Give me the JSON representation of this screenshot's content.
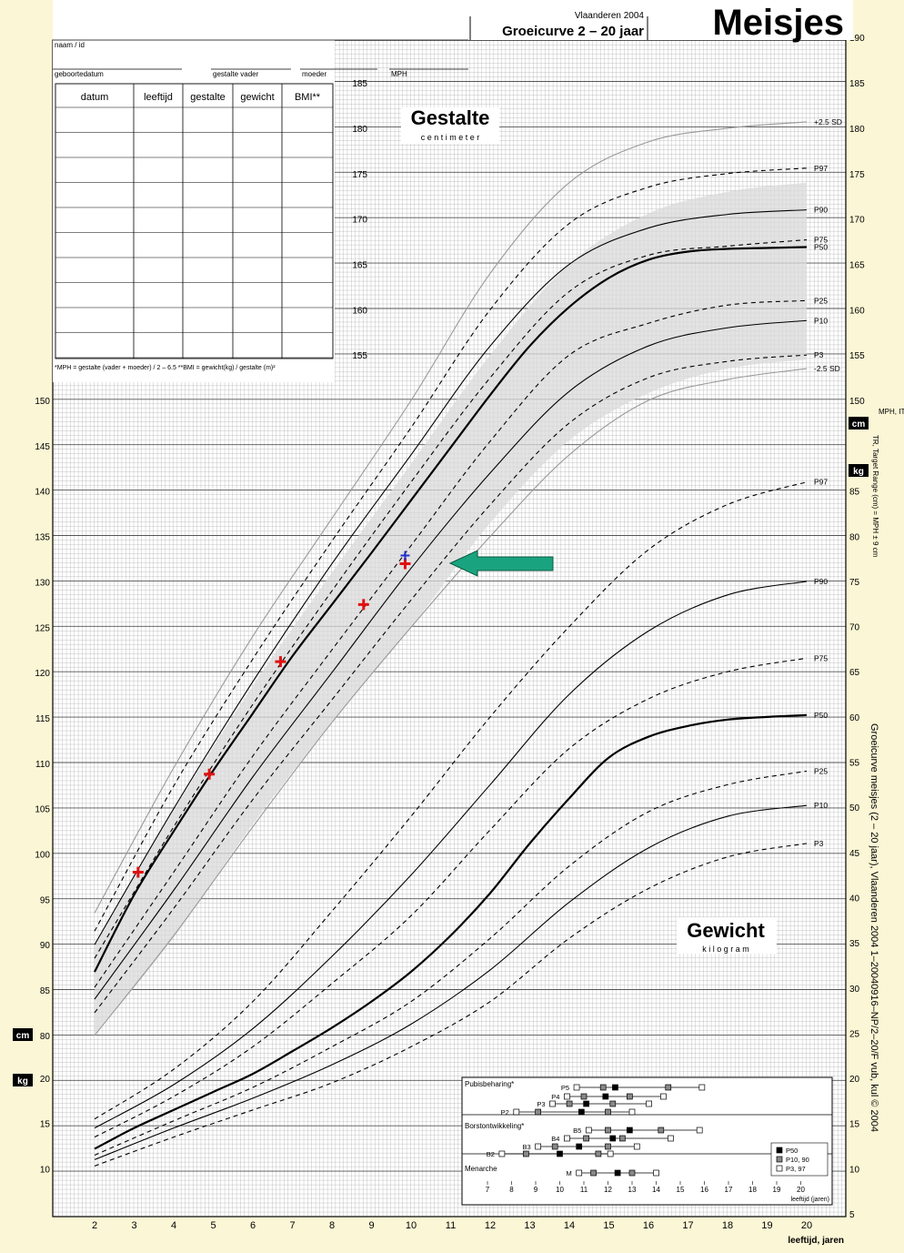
{
  "header": {
    "region_year": "Vlaanderen 2004",
    "title": "Groeicurve 2 – 20 jaar",
    "gender": "Meisjes"
  },
  "form": {
    "naam": "naam / id",
    "geboortedatum": "geboortedatum",
    "gestalte_vader": "gestalte vader",
    "moeder": "moeder",
    "mph": "MPH",
    "table_headers": [
      "datum",
      "leeftijd",
      "gestalte",
      "gewicht",
      "BMI**"
    ],
    "footnote": "*MPH = gestalte (vader + moeder) / 2 – 6.5    **BMI = gewicht(kg) / gestalte (m)²"
  },
  "height_section": {
    "title": "Gestalte",
    "subtitle": "c e n t i m e t e r",
    "unit": "cm"
  },
  "weight_section": {
    "title": "Gewicht",
    "subtitle": "k i l o g r a m",
    "unit": "kg"
  },
  "side_labels": {
    "mph_itr": "MPH, ITR",
    "target_range": "TR, Target Range (cm) = MPH ± 9 cm",
    "vertical_caption": "Groeicurve meisjes (2 – 20 jaar), Vlaanderen 2004   1–20040916–NP/2–20/F   vub, kul © 2004"
  },
  "x_axis_label": "leeftijd, jaren",
  "puberty_inset": {
    "sections": [
      "Pubisbeharing*",
      "Borstontwikkeling*",
      "Menarche"
    ],
    "legend": [
      "P50",
      "P10, 90",
      "P3, 97"
    ],
    "axis_label": "leeftijd (jaren)",
    "stage_labels": [
      "P5",
      "P4",
      "P3",
      "P2",
      "B5",
      "B4",
      "B3",
      "B2",
      "M"
    ],
    "colors": {
      "p50": "#000000",
      "p10_90": "#888888",
      "p3_97": "#ffffff"
    }
  },
  "colors": {
    "background": "#fbf6d5",
    "grid": "#999999",
    "curve": "#000000",
    "target_band": "#d9d9d9",
    "marker": "#e01010",
    "marker_blue": "#2030d0",
    "arrow": "#1aa37f"
  },
  "chart_data": [
    {
      "type": "line",
      "name": "height",
      "x_ticks": [
        2,
        3,
        4,
        5,
        6,
        7,
        8,
        9,
        10,
        11,
        12,
        13,
        14,
        15,
        16,
        17,
        18,
        19,
        20
      ],
      "y_ticks_left": [
        80,
        85,
        90,
        95,
        100,
        105,
        110,
        115,
        120,
        125,
        130,
        135,
        140,
        145,
        150
      ],
      "y_ticks_inner": [
        155,
        160,
        165,
        170,
        175,
        180,
        185
      ],
      "y_ticks_right": [
        150,
        155,
        160,
        165,
        170,
        175,
        180,
        185,
        190
      ],
      "ylim": [
        78,
        190
      ],
      "xlim": [
        1.6,
        20.9
      ],
      "series": [
        {
          "name": "+2.5 SD",
          "dashed": false,
          "light": true,
          "x": [
            2,
            4,
            6,
            8,
            10,
            12,
            14,
            16,
            18,
            20
          ],
          "y": [
            93.5,
            109.5,
            124,
            137,
            150,
            164,
            174,
            178.5,
            180,
            180.7
          ]
        },
        {
          "name": "P97",
          "dashed": true,
          "x": [
            2,
            4,
            6,
            8,
            10,
            12,
            14,
            16,
            18,
            20
          ],
          "y": [
            91.5,
            107.5,
            121.5,
            134.5,
            147,
            160,
            169.5,
            173.5,
            175,
            175.6
          ]
        },
        {
          "name": "P90",
          "dashed": false,
          "x": [
            2,
            4,
            6,
            8,
            10,
            12,
            14,
            16,
            18,
            20
          ],
          "y": [
            90,
            105,
            119,
            132,
            144,
            156,
            165,
            169,
            170.5,
            171
          ]
        },
        {
          "name": "P75",
          "dashed": true,
          "x": [
            2,
            4,
            6,
            8,
            10,
            12,
            14,
            16,
            18,
            20
          ],
          "y": [
            88.5,
            103,
            116.5,
            129,
            141,
            152.5,
            162,
            166,
            167,
            167.7
          ]
        },
        {
          "name": "P50",
          "dashed": false,
          "bold": true,
          "x": [
            2,
            3,
            4,
            5,
            6,
            7,
            8,
            9,
            10,
            11,
            12,
            13,
            14,
            15,
            16,
            17,
            18,
            19,
            20
          ],
          "y": [
            87,
            95.5,
            102.5,
            109.2,
            115.5,
            121.8,
            127.5,
            133.2,
            139,
            144.8,
            150.6,
            156,
            160.3,
            163.5,
            165.5,
            166.4,
            166.7,
            166.8,
            166.9
          ]
        },
        {
          "name": "P25",
          "dashed": true,
          "x": [
            2,
            4,
            6,
            8,
            10,
            12,
            14,
            16,
            18,
            20
          ],
          "y": [
            85.3,
            98,
            110.8,
            122.5,
            134,
            145.5,
            155,
            158.5,
            160.5,
            161
          ]
        },
        {
          "name": "P10",
          "dashed": false,
          "x": [
            2,
            4,
            6,
            8,
            10,
            12,
            14,
            16,
            18,
            20
          ],
          "y": [
            84,
            96,
            108.5,
            120,
            131.5,
            142,
            151,
            156,
            158,
            158.8
          ]
        },
        {
          "name": "P3",
          "dashed": true,
          "x": [
            2,
            4,
            6,
            8,
            10,
            12,
            14,
            16,
            18,
            20
          ],
          "y": [
            82.5,
            94,
            106,
            117,
            128,
            138.5,
            147.5,
            152.5,
            154.3,
            155
          ]
        },
        {
          "name": "-2.5 SD",
          "dashed": false,
          "light": true,
          "x": [
            2,
            4,
            6,
            8,
            10,
            12,
            14,
            16,
            18,
            20
          ],
          "y": [
            80,
            91,
            103,
            114.5,
            125,
            135,
            144,
            150,
            152.3,
            153.5
          ]
        }
      ],
      "target_band": {
        "x": [
          2,
          4,
          6,
          8,
          10,
          12,
          14,
          16,
          18,
          20
        ],
        "upper": [
          89.8,
          104.8,
          118.5,
          131,
          143,
          155,
          165,
          170.6,
          173,
          174
        ],
        "lower": [
          80,
          90.8,
          103.3,
          114.5,
          125,
          136.5,
          145.6,
          150.8,
          153.5,
          154.5
        ]
      }
    },
    {
      "type": "scatter",
      "name": "patient-height",
      "points": [
        {
          "x": 3.1,
          "y": 98
        },
        {
          "x": 4.9,
          "y": 108.8
        },
        {
          "x": 6.7,
          "y": 121.2
        },
        {
          "x": 8.8,
          "y": 127.5
        },
        {
          "x": 9.85,
          "y": 132
        }
      ],
      "extra_point": {
        "x": 9.85,
        "y": 132.3
      }
    },
    {
      "type": "line",
      "name": "weight",
      "y_ticks_right": [
        5,
        10,
        15,
        20,
        25,
        30,
        35,
        40,
        45,
        50,
        55,
        60,
        65,
        70,
        75,
        80,
        85
      ],
      "y_ticks_left": [
        10,
        15,
        20
      ],
      "ylim": [
        5,
        88
      ],
      "series": [
        {
          "name": "P97",
          "dashed": true,
          "x": [
            2,
            4,
            6,
            8,
            10,
            12,
            14,
            16,
            18,
            20
          ],
          "y": [
            15.5,
            21,
            28.5,
            38.5,
            49,
            60,
            70,
            78.5,
            83.5,
            86
          ]
        },
        {
          "name": "P90",
          "dashed": false,
          "x": [
            2,
            4,
            6,
            8,
            10,
            12,
            14,
            16,
            18,
            20
          ],
          "y": [
            14.5,
            19.3,
            25.5,
            33.5,
            42.5,
            52.5,
            62.5,
            69.5,
            73.5,
            75
          ]
        },
        {
          "name": "P75",
          "dashed": true,
          "x": [
            2,
            4,
            6,
            8,
            10,
            12,
            14,
            16,
            18,
            20
          ],
          "y": [
            13.5,
            18,
            23.5,
            30.5,
            38,
            47.5,
            56.5,
            62,
            65,
            66.5
          ]
        },
        {
          "name": "P50",
          "dashed": false,
          "bold": true,
          "x": [
            2,
            3,
            4,
            5,
            6,
            7,
            8,
            9,
            10,
            11,
            12,
            13,
            14,
            15,
            16,
            17,
            18,
            19,
            20
          ],
          "y": [
            12.2,
            14.5,
            16.5,
            18.5,
            20.5,
            23,
            25.6,
            28.5,
            31.8,
            35.8,
            40.5,
            46,
            51,
            55.5,
            57.8,
            59,
            59.7,
            60,
            60.2
          ]
        },
        {
          "name": "P25",
          "dashed": true,
          "x": [
            2,
            4,
            6,
            8,
            10,
            12,
            14,
            16,
            18,
            20
          ],
          "y": [
            11.5,
            15.3,
            19,
            23.5,
            28.5,
            35.5,
            43.5,
            49.5,
            52.5,
            54
          ]
        },
        {
          "name": "P10",
          "dashed": false,
          "x": [
            2,
            4,
            6,
            8,
            10,
            12,
            14,
            16,
            18,
            20
          ],
          "y": [
            11,
            14.5,
            17.8,
            21.5,
            26,
            32,
            39.5,
            45.5,
            49,
            50.2
          ]
        },
        {
          "name": "P3",
          "dashed": true,
          "x": [
            2,
            4,
            6,
            8,
            10,
            12,
            14,
            16,
            18,
            20
          ],
          "y": [
            10.3,
            13.5,
            16.5,
            19.5,
            23.5,
            28.5,
            35.5,
            41,
            44.5,
            46
          ]
        }
      ]
    }
  ]
}
